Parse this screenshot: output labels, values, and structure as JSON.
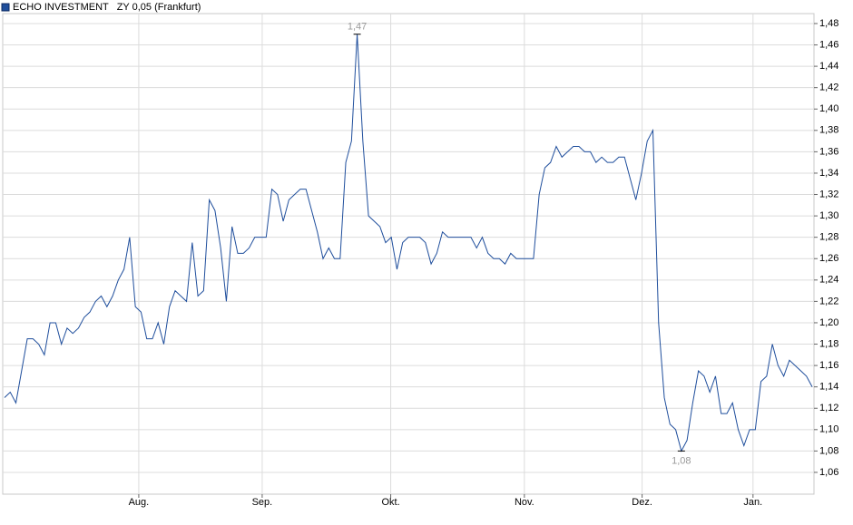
{
  "chart_data": {
    "type": "line",
    "series": [
      {
        "name": "ECHO INVESTMENT   ZY 0,05 (Frankfurt)",
        "color": "#1f4e9c",
        "values": [
          1.13,
          1.135,
          1.125,
          1.155,
          1.185,
          1.185,
          1.18,
          1.17,
          1.2,
          1.2,
          1.18,
          1.195,
          1.19,
          1.195,
          1.205,
          1.21,
          1.22,
          1.225,
          1.215,
          1.225,
          1.24,
          1.25,
          1.28,
          1.215,
          1.21,
          1.185,
          1.185,
          1.2,
          1.18,
          1.215,
          1.23,
          1.225,
          1.22,
          1.275,
          1.225,
          1.23,
          1.315,
          1.305,
          1.27,
          1.22,
          1.29,
          1.265,
          1.265,
          1.27,
          1.28,
          1.28,
          1.28,
          1.325,
          1.32,
          1.295,
          1.315,
          1.32,
          1.325,
          1.325,
          1.305,
          1.285,
          1.26,
          1.27,
          1.26,
          1.26,
          1.35,
          1.37,
          1.47,
          1.37,
          1.3,
          1.295,
          1.29,
          1.275,
          1.28,
          1.25,
          1.275,
          1.28,
          1.28,
          1.28,
          1.275,
          1.255,
          1.265,
          1.285,
          1.28,
          1.28,
          1.28,
          1.28,
          1.28,
          1.27,
          1.28,
          1.265,
          1.26,
          1.26,
          1.255,
          1.265,
          1.26,
          1.26,
          1.26,
          1.26,
          1.32,
          1.345,
          1.35,
          1.365,
          1.355,
          1.36,
          1.365,
          1.365,
          1.36,
          1.36,
          1.35,
          1.355,
          1.35,
          1.35,
          1.355,
          1.355,
          1.335,
          1.315,
          1.34,
          1.37,
          1.38,
          1.2,
          1.13,
          1.105,
          1.1,
          1.08,
          1.09,
          1.125,
          1.155,
          1.15,
          1.135,
          1.15,
          1.115,
          1.115,
          1.125,
          1.1,
          1.085,
          1.1,
          1.1,
          1.145,
          1.15,
          1.18,
          1.16,
          1.15,
          1.165,
          1.16,
          1.155,
          1.15,
          1.14
        ]
      }
    ],
    "high_label": "1,47",
    "low_label": "1,08",
    "xlim": [
      0,
      142
    ],
    "xticks": [
      {
        "value": 23.6,
        "label": "Aug."
      },
      {
        "value": 45.3,
        "label": "Sep."
      },
      {
        "value": 67.9,
        "label": "Okt."
      },
      {
        "value": 91.4,
        "label": "Nov."
      },
      {
        "value": 112.1,
        "label": "Dez."
      },
      {
        "value": 131.6,
        "label": "Jan."
      }
    ],
    "ylim": [
      1.0396,
      1.4893
    ],
    "yticks": [
      {
        "value": 1.06,
        "label": "1,06"
      },
      {
        "value": 1.08,
        "label": "1,08"
      },
      {
        "value": 1.1,
        "label": "1,10"
      },
      {
        "value": 1.12,
        "label": "1,12"
      },
      {
        "value": 1.14,
        "label": "1,14"
      },
      {
        "value": 1.16,
        "label": "1,16"
      },
      {
        "value": 1.18,
        "label": "1,18"
      },
      {
        "value": 1.2,
        "label": "1,20"
      },
      {
        "value": 1.22,
        "label": "1,22"
      },
      {
        "value": 1.24,
        "label": "1,24"
      },
      {
        "value": 1.26,
        "label": "1,26"
      },
      {
        "value": 1.28,
        "label": "1,28"
      },
      {
        "value": 1.3,
        "label": "1,30"
      },
      {
        "value": 1.32,
        "label": "1,32"
      },
      {
        "value": 1.34,
        "label": "1,34"
      },
      {
        "value": 1.36,
        "label": "1,36"
      },
      {
        "value": 1.38,
        "label": "1,38"
      },
      {
        "value": 1.4,
        "label": "1,40"
      },
      {
        "value": 1.42,
        "label": "1,42"
      },
      {
        "value": 1.44,
        "label": "1,44"
      },
      {
        "value": 1.46,
        "label": "1,46"
      },
      {
        "value": 1.48,
        "label": "1,48"
      }
    ],
    "grid": true
  }
}
